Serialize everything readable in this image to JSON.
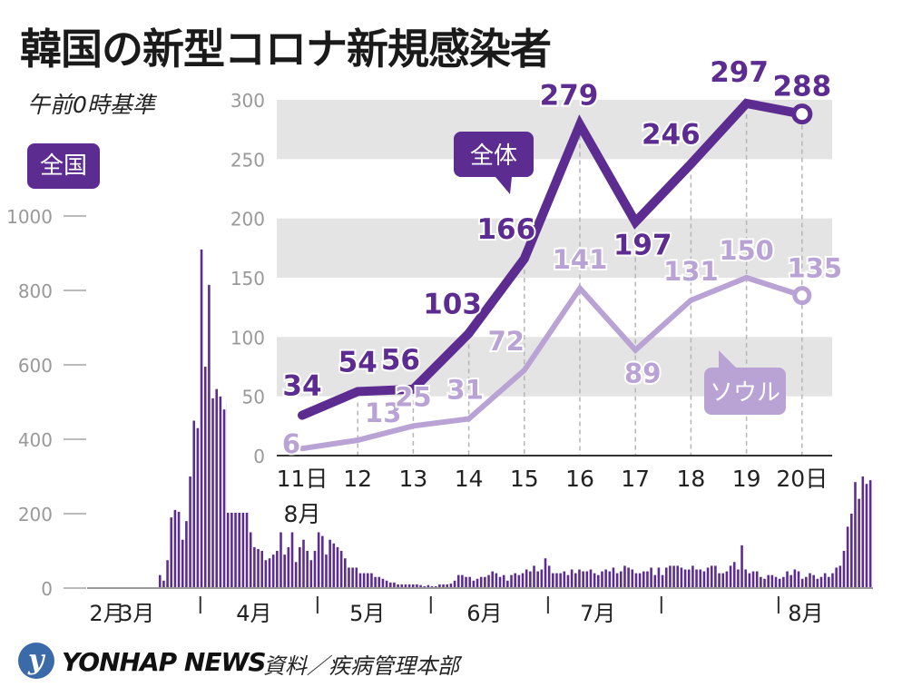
{
  "title": "韓国の新型コロナ新規感染者",
  "basis": "午前0時基準",
  "nation_label": "全国",
  "footer": {
    "logo_glyph": "y",
    "news": "YONHAP NEWS",
    "source": "資料／疾病管理本部"
  },
  "colors": {
    "main": "#5c2c91",
    "seoul": "#b9a3d4",
    "band": "#e4e4e4",
    "bar": "#5c2c91"
  },
  "chart_data": [
    {
      "type": "bar",
      "title": "",
      "ylim": [
        0,
        1000
      ],
      "y_ticks": [
        "0",
        "200",
        "400",
        "600",
        "800",
        "1000"
      ],
      "x_ticks": [
        "2月",
        "3月",
        "4月",
        "5月",
        "6月",
        "7月",
        "8月"
      ],
      "month_day_offsets": [
        0,
        29,
        60,
        90,
        121,
        151,
        182
      ],
      "first_date": "2020-02-01",
      "legend": "全国",
      "values": [
        0,
        0,
        0,
        0,
        0,
        0,
        0,
        0,
        0,
        0,
        0,
        0,
        0,
        0,
        0,
        0,
        0,
        0,
        35,
        20,
        75,
        190,
        210,
        205,
        130,
        180,
        300,
        450,
        430,
        910,
        595,
        815,
        510,
        535,
        515,
        480,
        500,
        440,
        370,
        280,
        250,
        250,
        150,
        110,
        105,
        100,
        75,
        80,
        90,
        100,
        150,
        90,
        110,
        150,
        70,
        110,
        130,
        100,
        75,
        100,
        150,
        140,
        90,
        130,
        120,
        110,
        100,
        80,
        55,
        55,
        55,
        40,
        40,
        40,
        40,
        30,
        30,
        25,
        20,
        15,
        15,
        10,
        10,
        10,
        10,
        10,
        10,
        8,
        5,
        8,
        5,
        5,
        10,
        10,
        10,
        12,
        20,
        35,
        35,
        30,
        30,
        20,
        25,
        30,
        30,
        35,
        45,
        40,
        30,
        35,
        20,
        35,
        40,
        35,
        40,
        50,
        45,
        60,
        45,
        50,
        80,
        60,
        40,
        40,
        40,
        45,
        35,
        50,
        40,
        50,
        45,
        45,
        50,
        40,
        35,
        45,
        50,
        45,
        55,
        40,
        45,
        60,
        55,
        50,
        40,
        40,
        45,
        45,
        55,
        35,
        55,
        35,
        55,
        60,
        60,
        60,
        55,
        50,
        50,
        60,
        50,
        50,
        45,
        55,
        60,
        60,
        40,
        40,
        45,
        60,
        70,
        50,
        115,
        50,
        40,
        45,
        45,
        30,
        25,
        35,
        35,
        30,
        25,
        30,
        45,
        35,
        50,
        45,
        25,
        30,
        40,
        35,
        25,
        30,
        40,
        30,
        40,
        55,
        60,
        100,
        165,
        200,
        285,
        240,
        300,
        280,
        290
      ]
    },
    {
      "type": "line",
      "title": "",
      "ylim": [
        0,
        300
      ],
      "y_ticks": [
        "0",
        "50",
        "100",
        "150",
        "200",
        "250",
        "300"
      ],
      "categories": [
        "11日",
        "12",
        "13",
        "14",
        "15",
        "16",
        "17",
        "18",
        "19",
        "20日"
      ],
      "x_sub_label": "8月",
      "series": [
        {
          "name": "全体",
          "values": [
            34,
            54,
            56,
            103,
            166,
            279,
            197,
            246,
            297,
            288
          ]
        },
        {
          "name": "ソウル",
          "values": [
            6,
            13,
            25,
            31,
            72,
            141,
            89,
            131,
            150,
            135
          ]
        }
      ]
    }
  ]
}
